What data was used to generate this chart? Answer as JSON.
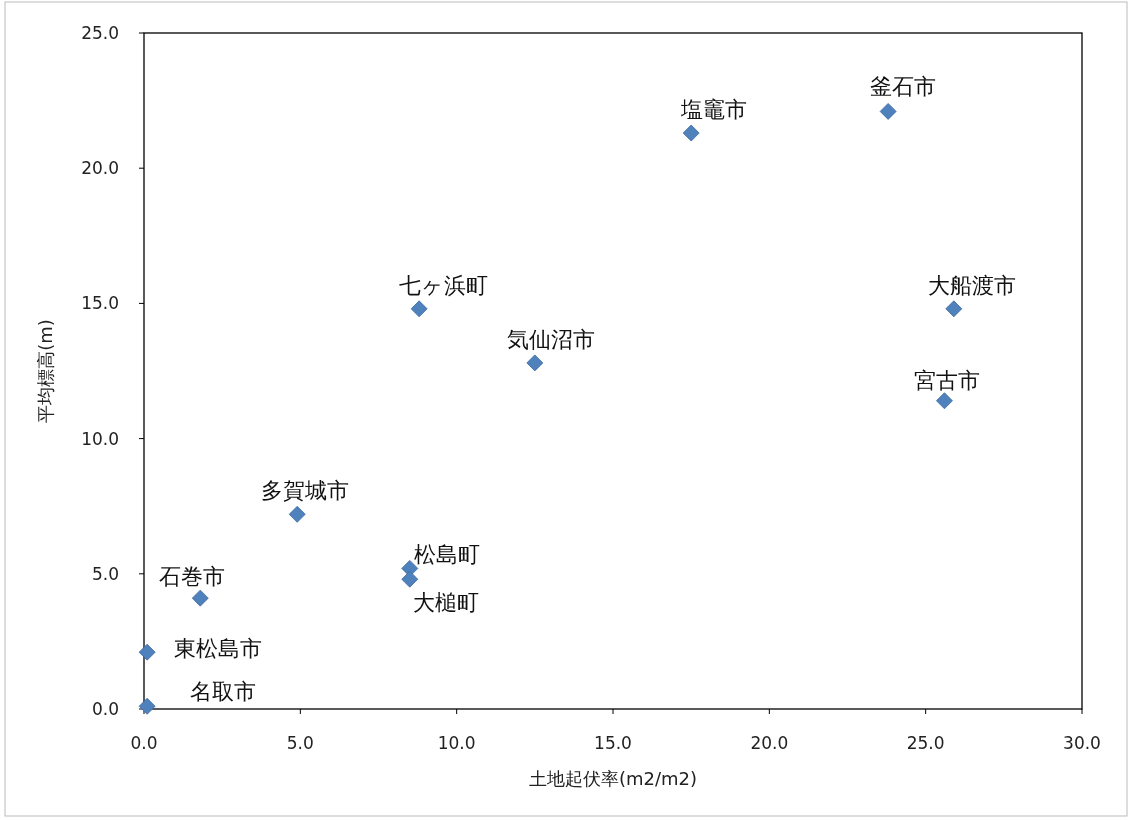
{
  "chart_data": {
    "type": "scatter",
    "xlabel": "土地起伏率(m2/m2)",
    "ylabel": "平均標高(m)",
    "x": [
      0.1,
      0.1,
      1.8,
      4.9,
      8.5,
      8.5,
      8.8,
      12.5,
      17.5,
      23.8,
      25.9,
      25.6
    ],
    "values": [
      0.1,
      2.1,
      4.1,
      7.2,
      5.2,
      4.8,
      14.8,
      12.8,
      21.3,
      22.1,
      14.8,
      11.4
    ],
    "color": "#4f81bd",
    "marker": "diamond",
    "xlim": [
      0,
      30
    ],
    "ylim": [
      0,
      25
    ],
    "xticks": [
      {
        "value": 0,
        "label": "0.0"
      },
      {
        "value": 5,
        "label": "5.0"
      },
      {
        "value": 10,
        "label": "10.0"
      },
      {
        "value": 15,
        "label": "15.0"
      },
      {
        "value": 20,
        "label": "20.0"
      },
      {
        "value": 25,
        "label": "25.0"
      },
      {
        "value": 30,
        "label": "30.0"
      }
    ],
    "yticks": [
      {
        "value": 0,
        "label": "0.0"
      },
      {
        "value": 5,
        "label": "5.0"
      },
      {
        "value": 10,
        "label": "10.0"
      },
      {
        "value": 15,
        "label": "15.0"
      },
      {
        "value": 20,
        "label": "20.0"
      },
      {
        "value": 25,
        "label": "25.0"
      }
    ],
    "annotations": [
      {
        "text": "名取市",
        "x": 0.1,
        "y": 0.1
      },
      {
        "text": "東松島市",
        "x": 0.1,
        "y": 2.1
      },
      {
        "text": "石巻市",
        "x": 1.8,
        "y": 4.1
      },
      {
        "text": "多賀城市",
        "x": 4.9,
        "y": 7.2
      },
      {
        "text": "松島町",
        "x": 8.5,
        "y": 5.2
      },
      {
        "text": "大槌町",
        "x": 8.5,
        "y": 4.8
      },
      {
        "text": "七ヶ浜町",
        "x": 8.8,
        "y": 14.8
      },
      {
        "text": "気仙沼市",
        "x": 12.5,
        "y": 12.8
      },
      {
        "text": "塩竈市",
        "x": 17.5,
        "y": 21.3
      },
      {
        "text": "釜石市",
        "x": 23.8,
        "y": 22.1
      },
      {
        "text": "大船渡市",
        "x": 25.9,
        "y": 14.8
      },
      {
        "text": "宮古市",
        "x": 25.6,
        "y": 11.4
      }
    ]
  }
}
